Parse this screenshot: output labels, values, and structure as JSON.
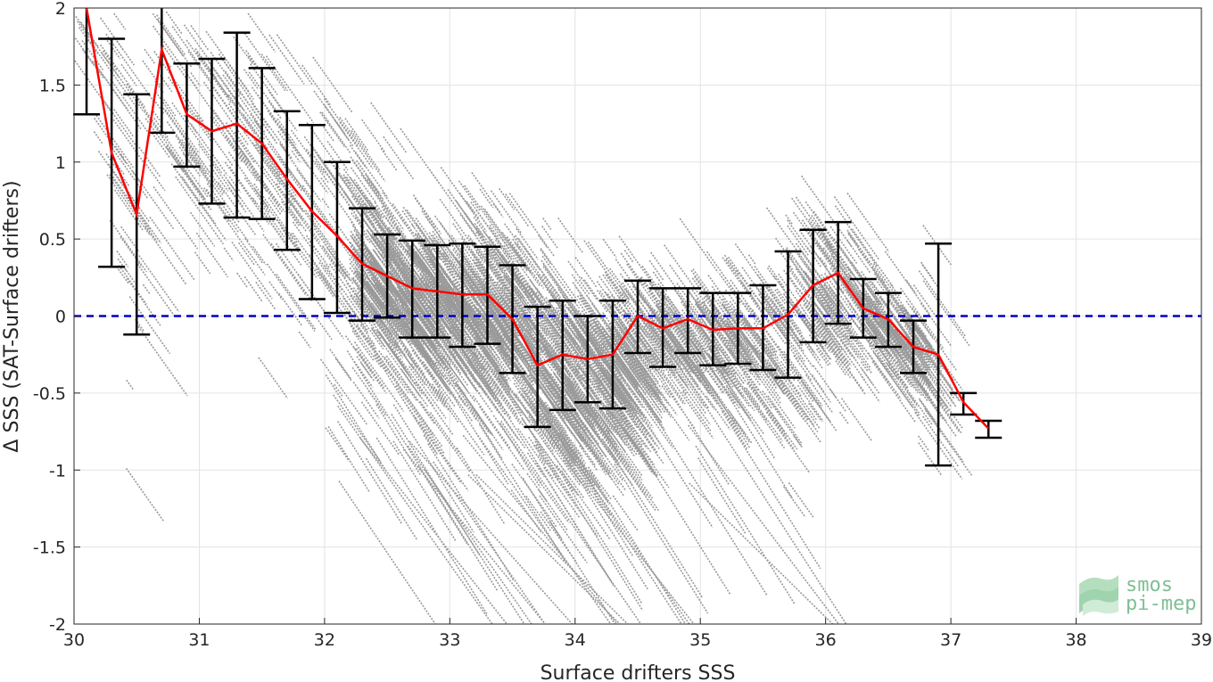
{
  "chart_data": {
    "type": "scatter",
    "xlabel": "Surface drifters SSS",
    "ylabel": "Δ SSS (SAT-Surface drifters)",
    "xlim": [
      30,
      39
    ],
    "ylim": [
      -2,
      2
    ],
    "xticks": [
      "30",
      "31",
      "32",
      "33",
      "34",
      "35",
      "36",
      "37",
      "38",
      "39"
    ],
    "yticks": [
      "2",
      "1.5",
      "1",
      "0.5",
      "0",
      "-0.5",
      "-1",
      "-1.5",
      "-2"
    ],
    "grid": true,
    "zero_line": {
      "y": 0,
      "style": "dashed",
      "color": "#0000cc"
    },
    "scatter_color": "#999999",
    "mean_line_color": "#ff0000",
    "errorbar_color": "#000000",
    "binned": [
      {
        "x": 30.1,
        "mean": 2.0,
        "low": 1.31,
        "high": 2.0
      },
      {
        "x": 30.3,
        "mean": 1.06,
        "low": 0.32,
        "high": 1.8
      },
      {
        "x": 30.5,
        "mean": 0.66,
        "low": -0.12,
        "high": 1.44
      },
      {
        "x": 30.7,
        "mean": 1.73,
        "low": 1.19,
        "high": 2.0
      },
      {
        "x": 30.9,
        "mean": 1.31,
        "low": 0.97,
        "high": 1.64
      },
      {
        "x": 31.1,
        "mean": 1.2,
        "low": 0.73,
        "high": 1.67
      },
      {
        "x": 31.3,
        "mean": 1.25,
        "low": 0.64,
        "high": 1.84
      },
      {
        "x": 31.5,
        "mean": 1.12,
        "low": 0.63,
        "high": 1.61
      },
      {
        "x": 31.7,
        "mean": 0.89,
        "low": 0.43,
        "high": 1.33
      },
      {
        "x": 31.9,
        "mean": 0.68,
        "low": 0.11,
        "high": 1.24
      },
      {
        "x": 32.1,
        "mean": 0.52,
        "low": 0.02,
        "high": 1.0
      },
      {
        "x": 32.3,
        "mean": 0.34,
        "low": -0.03,
        "high": 0.7
      },
      {
        "x": 32.5,
        "mean": 0.26,
        "low": -0.01,
        "high": 0.53
      },
      {
        "x": 32.7,
        "mean": 0.18,
        "low": -0.14,
        "high": 0.49
      },
      {
        "x": 32.9,
        "mean": 0.16,
        "low": -0.14,
        "high": 0.46
      },
      {
        "x": 33.1,
        "mean": 0.14,
        "low": -0.2,
        "high": 0.47
      },
      {
        "x": 33.3,
        "mean": 0.14,
        "low": -0.18,
        "high": 0.45
      },
      {
        "x": 33.5,
        "mean": -0.02,
        "low": -0.37,
        "high": 0.33
      },
      {
        "x": 33.7,
        "mean": -0.32,
        "low": -0.72,
        "high": 0.06
      },
      {
        "x": 33.9,
        "mean": -0.25,
        "low": -0.61,
        "high": 0.1
      },
      {
        "x": 34.1,
        "mean": -0.28,
        "low": -0.56,
        "high": 0.0
      },
      {
        "x": 34.3,
        "mean": -0.25,
        "low": -0.6,
        "high": 0.1
      },
      {
        "x": 34.5,
        "mean": 0.0,
        "low": -0.24,
        "high": 0.23
      },
      {
        "x": 34.7,
        "mean": -0.08,
        "low": -0.33,
        "high": 0.18
      },
      {
        "x": 34.9,
        "mean": -0.02,
        "low": -0.24,
        "high": 0.18
      },
      {
        "x": 35.1,
        "mean": -0.09,
        "low": -0.32,
        "high": 0.15
      },
      {
        "x": 35.3,
        "mean": -0.08,
        "low": -0.31,
        "high": 0.15
      },
      {
        "x": 35.5,
        "mean": -0.08,
        "low": -0.35,
        "high": 0.2
      },
      {
        "x": 35.7,
        "mean": 0.01,
        "low": -0.4,
        "high": 0.42
      },
      {
        "x": 35.9,
        "mean": 0.2,
        "low": -0.17,
        "high": 0.56
      },
      {
        "x": 36.1,
        "mean": 0.28,
        "low": -0.05,
        "high": 0.61
      },
      {
        "x": 36.3,
        "mean": 0.05,
        "low": -0.14,
        "high": 0.24
      },
      {
        "x": 36.5,
        "mean": -0.02,
        "low": -0.2,
        "high": 0.15
      },
      {
        "x": 36.7,
        "mean": -0.2,
        "low": -0.37,
        "high": -0.03
      },
      {
        "x": 36.9,
        "mean": -0.25,
        "low": -0.97,
        "high": 0.47
      },
      {
        "x": 37.1,
        "mean": -0.56,
        "low": -0.64,
        "high": -0.5
      },
      {
        "x": 37.3,
        "mean": -0.73,
        "low": -0.79,
        "high": -0.68
      }
    ]
  },
  "logo": {
    "line1": "smos",
    "line2": "pi-mep",
    "color": "#7fbf95"
  }
}
